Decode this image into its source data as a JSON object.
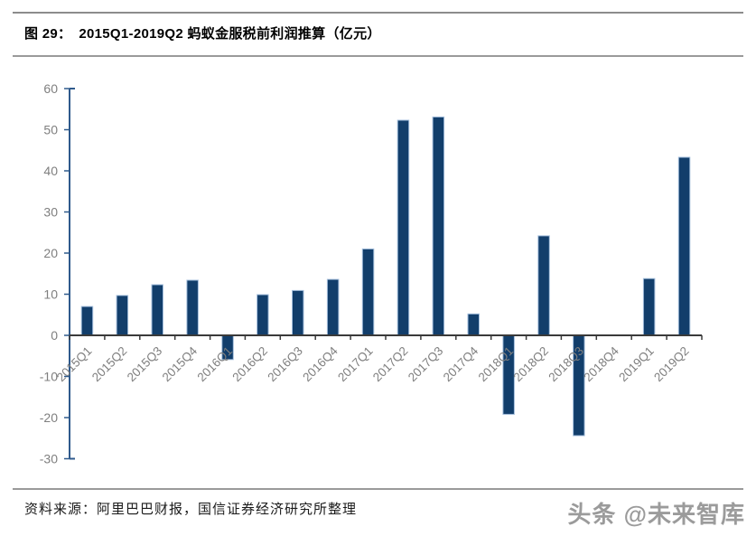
{
  "header": {
    "figure_label": "图 29：",
    "title": "2015Q1-2019Q2 蚂蚁金服税前利润推算（亿元）"
  },
  "chart_data": {
    "type": "bar",
    "title": "2015Q1-2019Q2 蚂蚁金服税前利润推算（亿元）",
    "categories": [
      "2015Q1",
      "2015Q2",
      "2015Q3",
      "2015Q4",
      "2016Q1",
      "2016Q2",
      "2016Q3",
      "2016Q4",
      "2017Q1",
      "2017Q2",
      "2017Q3",
      "2017Q4",
      "2018Q1",
      "2018Q2",
      "2018Q3",
      "2018Q4",
      "2019Q1",
      "2019Q2"
    ],
    "values": [
      7.0,
      9.7,
      12.3,
      13.4,
      -5.9,
      9.9,
      10.9,
      13.6,
      21.0,
      52.3,
      53.1,
      5.2,
      -19.2,
      24.2,
      -24.4,
      0,
      13.8,
      43.3
    ],
    "xlabel": "",
    "ylabel": "",
    "ylim": [
      -30,
      60
    ],
    "ytick_step": 10,
    "ytick_labels": [
      "60",
      "50",
      "40",
      "30",
      "20",
      "10",
      "0",
      "-10",
      "-20",
      "-30"
    ],
    "grid": false,
    "legend": "none",
    "colors": {
      "bar_fill": "#123e6b",
      "bar_border": "#a3bedc",
      "y_axis": "#2f5a8c",
      "x_axis": "#3a3a3a",
      "tick_label": "#7f7f7f"
    }
  },
  "footer": {
    "source": "资料来源：阿里巴巴财报，国信证券经济研究所整理",
    "watermark": "头条 @未来智库"
  }
}
